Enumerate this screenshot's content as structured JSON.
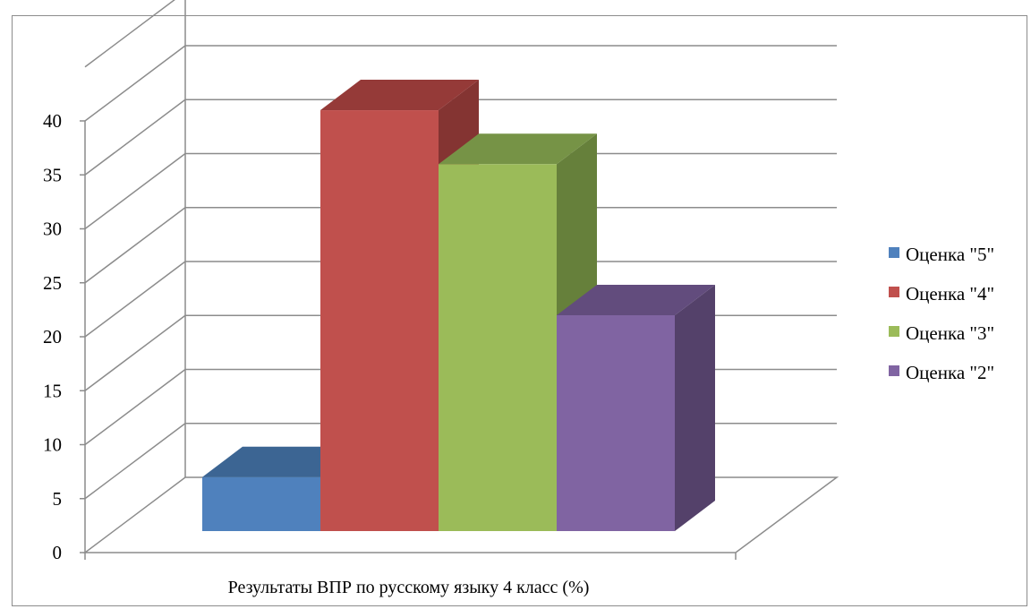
{
  "chart_data": {
    "type": "bar",
    "style": "3d-clustered-column",
    "categories": [
      "Результаты  ВПР по русскому языку 4 класс  (%)"
    ],
    "series": [
      {
        "name": "Оценка \"5\"",
        "values": [
          5
        ],
        "color": "#4f81bd",
        "top_color": "#3c6593",
        "side_color": "#385d8a"
      },
      {
        "name": "Оценка \"4\"",
        "values": [
          39
        ],
        "color": "#c0504d",
        "top_color": "#953a38",
        "side_color": "#843432"
      },
      {
        "name": "Оценка \"3\"",
        "values": [
          34
        ],
        "color": "#9bbb59",
        "top_color": "#769346",
        "side_color": "#66803b"
      },
      {
        "name": "Оценка \"2\"",
        "values": [
          20
        ],
        "color": "#8064a2",
        "top_color": "#624c7d",
        "side_color": "#54416a"
      }
    ],
    "y_ticks": [
      "0",
      "5",
      "10",
      "15",
      "20",
      "25",
      "30",
      "35",
      "40"
    ],
    "ylim": [
      0,
      45
    ],
    "title": "",
    "xlabel": "",
    "ylabel": "",
    "grid": true,
    "legend_position": "right"
  }
}
